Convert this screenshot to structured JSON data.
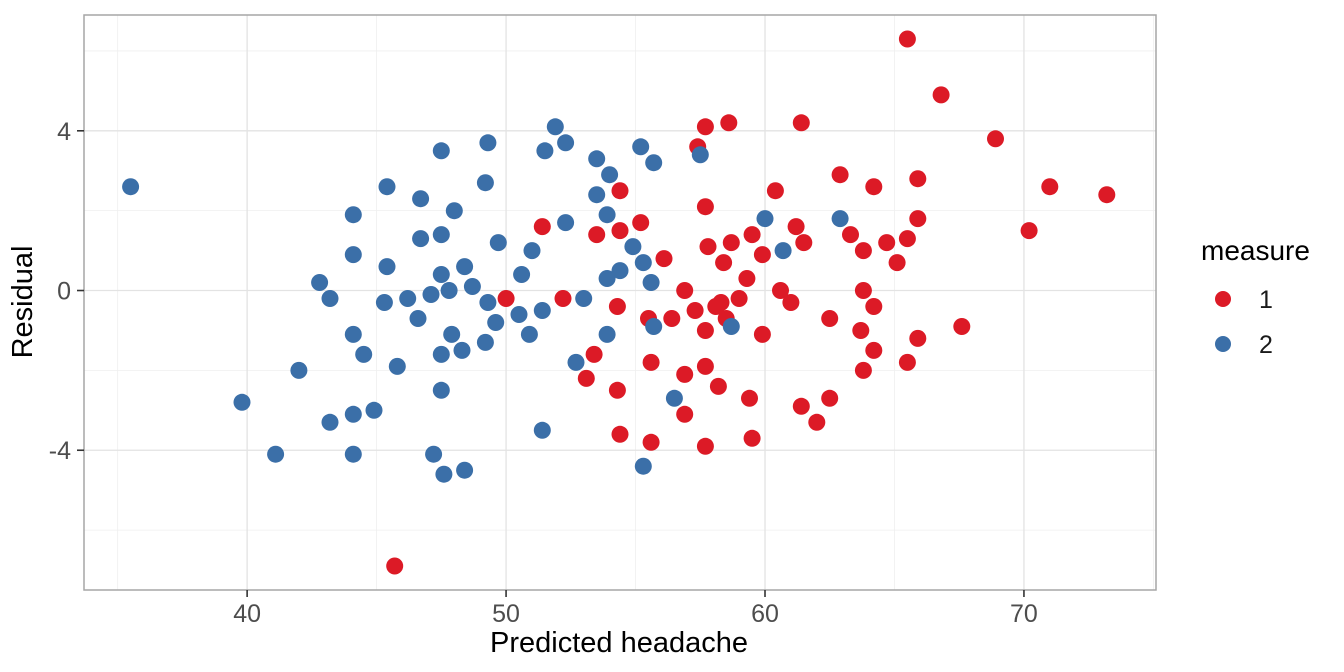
{
  "chart_data": {
    "type": "scatter",
    "title": "",
    "xlabel": "Predicted headache",
    "ylabel": "Residual",
    "xlim": [
      33.7,
      75.1
    ],
    "ylim": [
      -7.5,
      6.9
    ],
    "xticks": [
      40,
      50,
      60,
      70
    ],
    "yticks": [
      -4,
      0,
      4
    ],
    "grid": "major and minor gridlines, light gray, white panel with gray border",
    "legend": {
      "title": "measure",
      "position": "right"
    },
    "point_radius_px": 8.5,
    "series": [
      {
        "name": "1",
        "color": "#DC1A26",
        "points": [
          [
            45.7,
            -6.9
          ],
          [
            50.0,
            -0.2
          ],
          [
            51.4,
            1.6
          ],
          [
            52.2,
            -0.2
          ],
          [
            53.1,
            -2.2
          ],
          [
            53.4,
            -1.6
          ],
          [
            53.5,
            1.4
          ],
          [
            54.3,
            -2.5
          ],
          [
            54.4,
            2.5
          ],
          [
            54.4,
            1.5
          ],
          [
            54.3,
            -0.4
          ],
          [
            54.4,
            -3.6
          ],
          [
            55.2,
            1.7
          ],
          [
            55.5,
            -0.7
          ],
          [
            55.6,
            -1.8
          ],
          [
            55.6,
            -3.8
          ],
          [
            56.1,
            0.8
          ],
          [
            56.4,
            -0.7
          ],
          [
            56.9,
            0.0
          ],
          [
            56.9,
            -2.1
          ],
          [
            56.9,
            -3.1
          ],
          [
            57.3,
            -0.5
          ],
          [
            57.4,
            3.6
          ],
          [
            57.7,
            4.1
          ],
          [
            57.7,
            2.1
          ],
          [
            57.7,
            -1.0
          ],
          [
            57.7,
            -1.9
          ],
          [
            57.7,
            -3.9
          ],
          [
            57.8,
            1.1
          ],
          [
            58.1,
            -0.4
          ],
          [
            58.2,
            -2.4
          ],
          [
            58.4,
            0.7
          ],
          [
            58.5,
            -0.7
          ],
          [
            58.3,
            -0.3
          ],
          [
            58.6,
            4.2
          ],
          [
            58.7,
            1.2
          ],
          [
            59.0,
            -0.2
          ],
          [
            59.3,
            0.3
          ],
          [
            59.4,
            -2.7
          ],
          [
            59.5,
            1.4
          ],
          [
            59.5,
            -3.7
          ],
          [
            59.9,
            0.9
          ],
          [
            59.9,
            -1.1
          ],
          [
            60.4,
            2.5
          ],
          [
            60.6,
            0.0
          ],
          [
            61.0,
            -0.3
          ],
          [
            61.2,
            1.6
          ],
          [
            61.5,
            1.2
          ],
          [
            61.4,
            4.2
          ],
          [
            61.4,
            -2.9
          ],
          [
            62.0,
            -3.3
          ],
          [
            62.5,
            -0.7
          ],
          [
            62.5,
            -2.7
          ],
          [
            62.9,
            2.9
          ],
          [
            63.3,
            1.4
          ],
          [
            63.7,
            -1.0
          ],
          [
            63.8,
            1.0
          ],
          [
            63.8,
            0.0
          ],
          [
            63.8,
            -2.0
          ],
          [
            64.2,
            2.6
          ],
          [
            64.2,
            -0.4
          ],
          [
            64.2,
            -1.5
          ],
          [
            64.7,
            1.2
          ],
          [
            65.1,
            0.7
          ],
          [
            65.5,
            1.3
          ],
          [
            65.5,
            6.3
          ],
          [
            65.5,
            -1.8
          ],
          [
            65.9,
            2.8
          ],
          [
            65.9,
            1.8
          ],
          [
            65.9,
            -1.2
          ],
          [
            66.8,
            4.9
          ],
          [
            67.6,
            -0.9
          ],
          [
            68.9,
            3.8
          ],
          [
            70.2,
            1.5
          ],
          [
            71.0,
            2.6
          ],
          [
            73.2,
            2.4
          ]
        ]
      },
      {
        "name": "2",
        "color": "#3B6FA8",
        "points": [
          [
            35.5,
            2.6
          ],
          [
            39.8,
            -2.8
          ],
          [
            41.1,
            -4.1
          ],
          [
            42.0,
            -2.0
          ],
          [
            42.8,
            0.2
          ],
          [
            43.2,
            -0.2
          ],
          [
            43.2,
            -3.3
          ],
          [
            44.1,
            1.9
          ],
          [
            44.1,
            0.9
          ],
          [
            44.1,
            -1.1
          ],
          [
            44.1,
            -3.1
          ],
          [
            44.1,
            -4.1
          ],
          [
            44.5,
            -1.6
          ],
          [
            44.9,
            -3.0
          ],
          [
            45.4,
            2.6
          ],
          [
            45.4,
            0.6
          ],
          [
            45.3,
            -0.3
          ],
          [
            45.8,
            -1.9
          ],
          [
            46.2,
            -0.2
          ],
          [
            46.6,
            -0.7
          ],
          [
            46.7,
            2.3
          ],
          [
            46.7,
            1.3
          ],
          [
            47.1,
            -0.1
          ],
          [
            47.2,
            -4.1
          ],
          [
            47.5,
            3.5
          ],
          [
            47.5,
            1.4
          ],
          [
            47.5,
            0.4
          ],
          [
            47.5,
            -1.6
          ],
          [
            47.5,
            -2.5
          ],
          [
            47.6,
            -4.6
          ],
          [
            47.8,
            0.0
          ],
          [
            47.9,
            -1.1
          ],
          [
            48.0,
            2.0
          ],
          [
            48.3,
            -1.5
          ],
          [
            48.4,
            0.6
          ],
          [
            48.4,
            -4.5
          ],
          [
            48.7,
            0.1
          ],
          [
            49.2,
            2.7
          ],
          [
            49.3,
            3.7
          ],
          [
            49.3,
            -0.3
          ],
          [
            49.2,
            -1.3
          ],
          [
            49.6,
            -0.8
          ],
          [
            49.7,
            1.2
          ],
          [
            50.5,
            -0.6
          ],
          [
            50.6,
            0.4
          ],
          [
            50.9,
            -1.1
          ],
          [
            51.0,
            1.0
          ],
          [
            51.4,
            -0.5
          ],
          [
            51.4,
            -3.5
          ],
          [
            51.5,
            3.5
          ],
          [
            51.9,
            4.1
          ],
          [
            52.3,
            3.7
          ],
          [
            52.3,
            1.7
          ],
          [
            52.7,
            -1.8
          ],
          [
            53.0,
            -0.2
          ],
          [
            53.5,
            3.3
          ],
          [
            53.5,
            2.4
          ],
          [
            53.9,
            1.9
          ],
          [
            53.9,
            0.3
          ],
          [
            53.9,
            -1.1
          ],
          [
            54.0,
            2.9
          ],
          [
            54.4,
            0.5
          ],
          [
            54.9,
            1.1
          ],
          [
            55.2,
            3.6
          ],
          [
            55.3,
            0.7
          ],
          [
            55.3,
            -4.4
          ],
          [
            55.6,
            0.2
          ],
          [
            55.7,
            3.2
          ],
          [
            55.7,
            -0.9
          ],
          [
            56.5,
            -2.7
          ],
          [
            57.5,
            3.4
          ],
          [
            58.7,
            -0.9
          ],
          [
            60.0,
            1.8
          ],
          [
            60.7,
            1.0
          ],
          [
            62.9,
            1.8
          ]
        ]
      }
    ],
    "style_colors": {
      "panel_background": "#FFFFFF",
      "panel_border": "#A6A6A6",
      "grid_major": "#E3E3E3",
      "grid_minor": "#EFEFEF",
      "tick_mark": "#333333",
      "tick_label": "#4D4D4D"
    }
  }
}
